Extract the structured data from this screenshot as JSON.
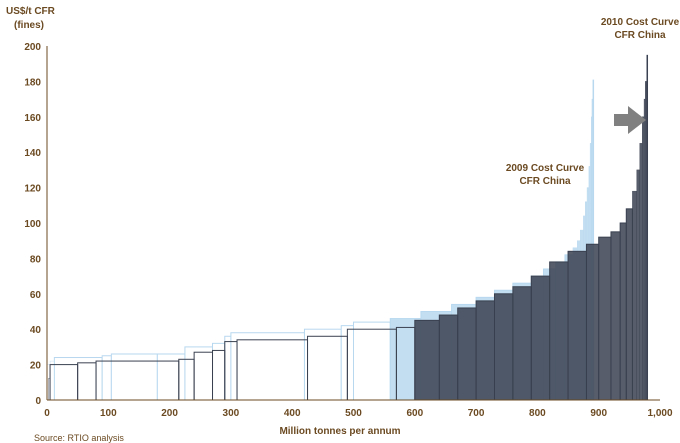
{
  "chart_data": {
    "type": "step",
    "title": "",
    "ylabel_line1": "US$/t CFR",
    "ylabel_line2": "(fines)",
    "xlabel": "Million tonnes per annum",
    "source": "Source: RTIO analysis",
    "xlim": [
      0,
      1000
    ],
    "ylim": [
      0,
      200
    ],
    "x_ticks": [
      "0",
      "100",
      "200",
      "300",
      "400",
      "500",
      "600",
      "700",
      "800",
      "900",
      "1,000"
    ],
    "y_ticks": [
      "0",
      "20",
      "40",
      "60",
      "80",
      "100",
      "120",
      "140",
      "160",
      "180",
      "200"
    ],
    "grid": false,
    "colors": {
      "curve_2009": "#b8d8ef",
      "curve_2010": "#3a4150",
      "arrow": "#808080",
      "text": "#6b4a22"
    },
    "annotations": [
      {
        "text_line1": "2010 Cost Curve",
        "text_line2": "CFR China",
        "x": 965,
        "y": 205
      },
      {
        "text_line1": "2009 Cost Curve",
        "text_line2": "CFR China",
        "x": 830,
        "y": 128
      }
    ],
    "series": [
      {
        "name": "2009 Cost Curve CFR China",
        "points": [
          [
            0,
            20
          ],
          [
            5,
            22
          ],
          [
            12,
            24
          ],
          [
            90,
            25
          ],
          [
            105,
            26
          ],
          [
            180,
            26
          ],
          [
            225,
            30
          ],
          [
            270,
            32
          ],
          [
            290,
            36
          ],
          [
            300,
            38
          ],
          [
            420,
            40
          ],
          [
            480,
            42
          ],
          [
            500,
            44
          ],
          [
            560,
            46
          ],
          [
            610,
            50
          ],
          [
            660,
            54
          ],
          [
            700,
            58
          ],
          [
            730,
            62
          ],
          [
            760,
            66
          ],
          [
            790,
            70
          ],
          [
            810,
            74
          ],
          [
            830,
            78
          ],
          [
            845,
            82
          ],
          [
            858,
            86
          ],
          [
            865,
            90
          ],
          [
            870,
            96
          ],
          [
            875,
            104
          ],
          [
            878,
            112
          ],
          [
            881,
            120
          ],
          [
            884,
            132
          ],
          [
            886,
            145
          ],
          [
            888,
            160
          ],
          [
            889,
            170
          ],
          [
            890,
            181
          ]
        ]
      },
      {
        "name": "2010 Cost Curve CFR China",
        "points": [
          [
            0,
            0
          ],
          [
            2,
            12
          ],
          [
            5,
            20
          ],
          [
            50,
            21
          ],
          [
            80,
            22
          ],
          [
            215,
            23
          ],
          [
            240,
            27
          ],
          [
            270,
            28
          ],
          [
            290,
            33
          ],
          [
            310,
            34
          ],
          [
            425,
            36
          ],
          [
            490,
            40
          ],
          [
            570,
            41
          ],
          [
            600,
            45
          ],
          [
            640,
            48
          ],
          [
            670,
            52
          ],
          [
            700,
            56
          ],
          [
            730,
            60
          ],
          [
            760,
            64
          ],
          [
            790,
            70
          ],
          [
            820,
            78
          ],
          [
            850,
            84
          ],
          [
            880,
            88
          ],
          [
            900,
            92
          ],
          [
            920,
            95
          ],
          [
            935,
            100
          ],
          [
            945,
            108
          ],
          [
            955,
            118
          ],
          [
            962,
            130
          ],
          [
            967,
            145
          ],
          [
            971,
            160
          ],
          [
            974,
            170
          ],
          [
            976,
            180
          ],
          [
            978,
            195
          ]
        ]
      }
    ]
  }
}
